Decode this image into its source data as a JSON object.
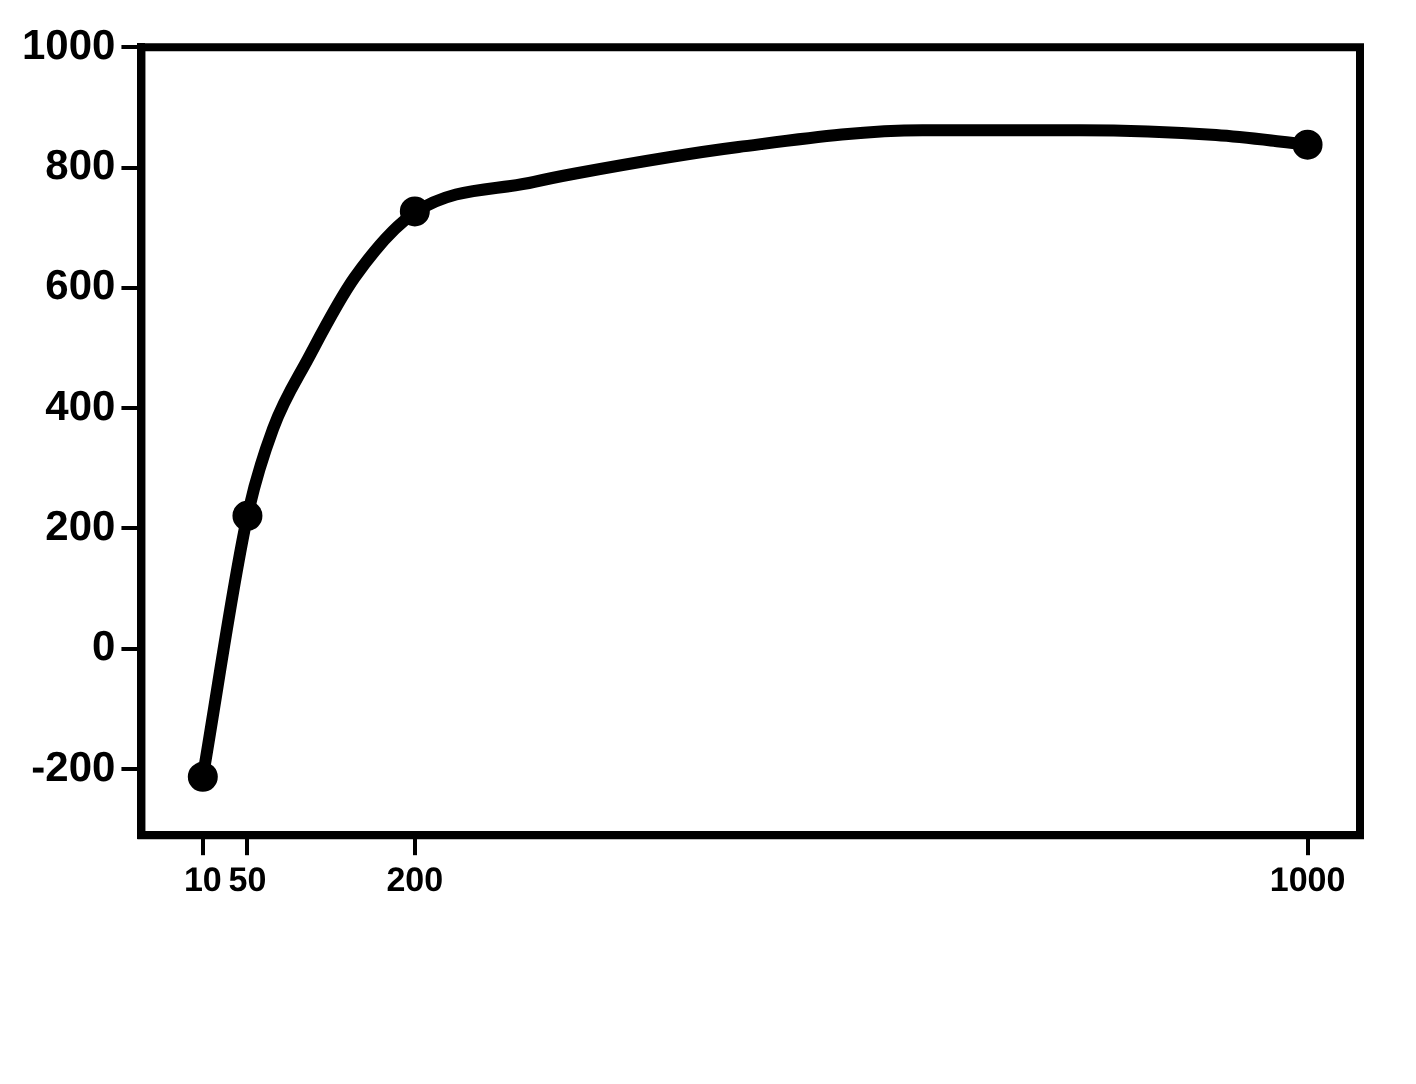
{
  "chart_data": {
    "type": "scatter",
    "marker": "circle",
    "grid": false,
    "legend": false,
    "xlim": [
      -45,
      1047
    ],
    "xticks": [
      10,
      50,
      200,
      1000
    ],
    "ylim": [
      -310,
      1000
    ],
    "yticks": [
      -200,
      0,
      200,
      400,
      600,
      800,
      1000
    ],
    "series": [
      {
        "type": "line",
        "color": "#000000",
        "line_style": "solid",
        "marker": "none",
        "x": [
          10,
          50,
          73,
          104,
          146,
          200,
          307,
          344,
          490,
          655,
          796,
          918,
          1000
        ],
        "values": [
          -213,
          221,
          366,
          481,
          617,
          725,
          776,
          790,
          834,
          862,
          862,
          854,
          838
        ]
      },
      {
        "color": "#000000",
        "x": [
          10,
          50,
          200,
          1000
        ],
        "values": [
          -213,
          221,
          727,
          838
        ]
      }
    ]
  }
}
